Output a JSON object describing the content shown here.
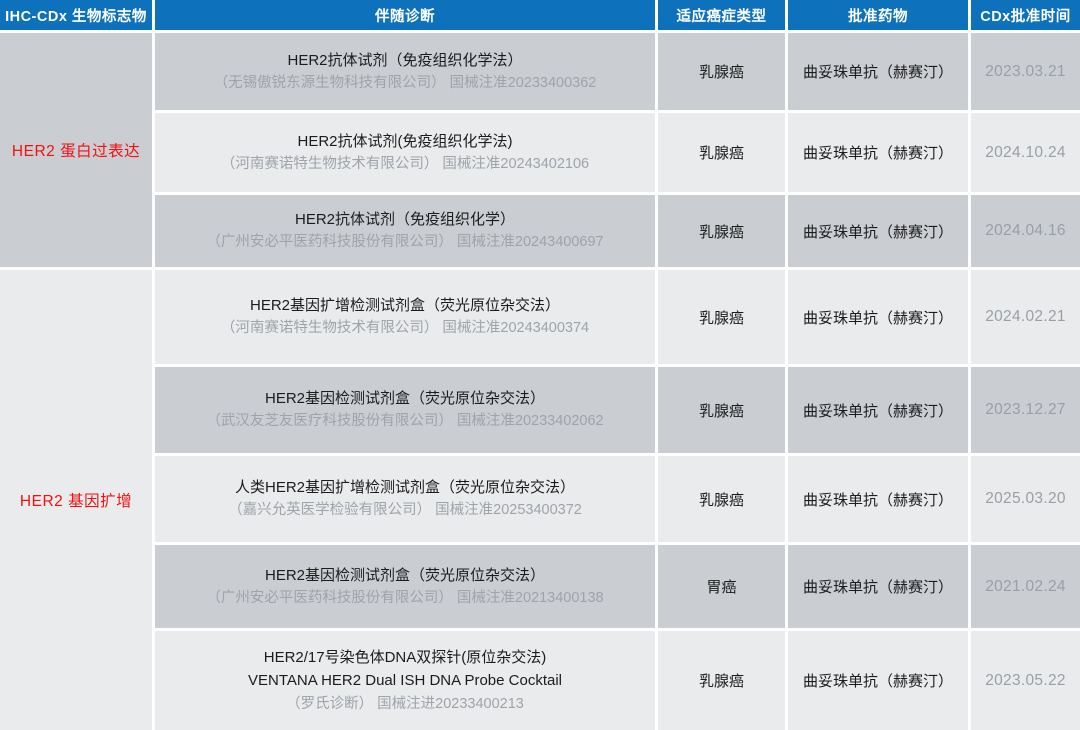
{
  "header": {
    "col_biomarker": "IHC-CDx 生物标志物",
    "col_diagnostic": "伴随诊断",
    "col_cancer": "适应癌症类型",
    "col_drug": "批准药物",
    "col_date": "CDx批准时间"
  },
  "groups": [
    {
      "label": "HER2 蛋白过表达"
    },
    {
      "label": "HER2 基因扩增"
    }
  ],
  "rows": [
    {
      "product": "HER2抗体试剂（免疫组织化学法）",
      "company_reg": "（无锡傲锐东源生物科技有限公司） 国械注准20233400362",
      "cancer": "乳腺癌",
      "drug": "曲妥珠单抗（赫赛汀）",
      "date": "2023.03.21"
    },
    {
      "product": "HER2抗体试剂(免疫组织化学法)",
      "company_reg": "（河南赛诺特生物技术有限公司） 国械注准20243402106",
      "cancer": "乳腺癌",
      "drug": "曲妥珠单抗（赫赛汀）",
      "date": "2024.10.24"
    },
    {
      "product": "HER2抗体试剂（免疫组织化学）",
      "company_reg": "（广州安必平医药科技股份有限公司） 国械注准20243400697",
      "cancer": "乳腺癌",
      "drug": "曲妥珠单抗（赫赛汀）",
      "date": "2024.04.16"
    },
    {
      "product": "HER2基因扩增检测试剂盒（荧光原位杂交法）",
      "company_reg": "（河南赛诺特生物技术有限公司） 国械注准20243400374",
      "cancer": "乳腺癌",
      "drug": "曲妥珠单抗（赫赛汀）",
      "date": "2024.02.21"
    },
    {
      "product": "HER2基因检测试剂盒（荧光原位杂交法）",
      "company_reg": "（武汉友芝友医疗科技股份有限公司） 国械注准20233402062",
      "cancer": "乳腺癌",
      "drug": "曲妥珠单抗（赫赛汀）",
      "date": "2023.12.27"
    },
    {
      "product": "人类HER2基因扩增检测试剂盒（荧光原位杂交法）",
      "company_reg": "（嘉兴允英医学检验有限公司） 国械注准20253400372",
      "cancer": "乳腺癌",
      "drug": "曲妥珠单抗（赫赛汀）",
      "date": "2025.03.20"
    },
    {
      "product": "HER2基因检测试剂盒（荧光原位杂交法）",
      "company_reg": "（广州安必平医药科技股份有限公司） 国械注准20213400138",
      "cancer": "胃癌",
      "drug": "曲妥珠单抗（赫赛汀）",
      "date": "2021.02.24"
    },
    {
      "product": "HER2/17号染色体DNA双探针(原位杂交法)",
      "product_en": "VENTANA HER2 Dual ISH DNA Probe Cocktail",
      "company_reg": "（罗氏诊断） 国械注进20233400213",
      "cancer": "乳腺癌",
      "drug": "曲妥珠单抗（赫赛汀）",
      "date": "2023.05.22"
    }
  ],
  "colors": {
    "header_bg": "#0d71bc",
    "header_text": "#ffffff",
    "row_gray": "#cacdd2",
    "row_light": "#e9ebed",
    "group_label_red": "#f40f0f",
    "muted_text": "#9fa4aa",
    "gap_white": "#ffffff"
  }
}
